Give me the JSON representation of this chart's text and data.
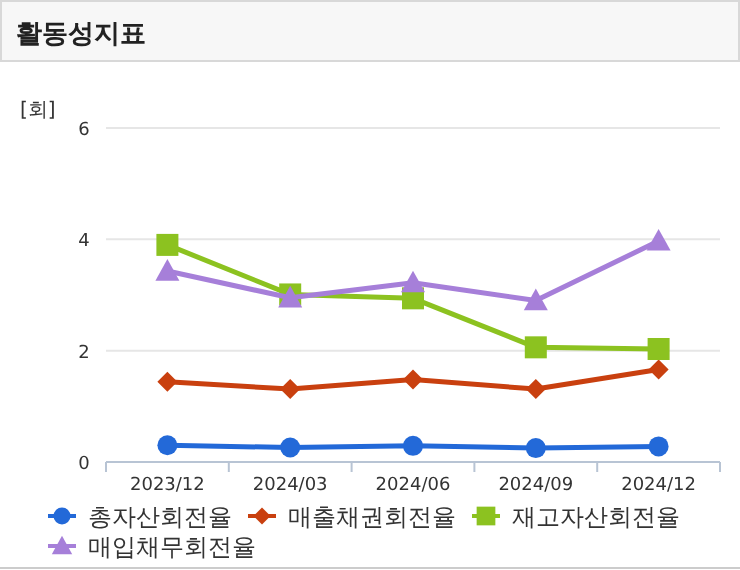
{
  "chart_data": {
    "type": "line",
    "title": "활동성지표",
    "ylabel": "[회]",
    "categories": [
      "2023/12",
      "2024/03",
      "2024/06",
      "2024/09",
      "2024/12"
    ],
    "ylim": [
      0,
      6
    ],
    "yticks": [
      0,
      2,
      4,
      6
    ],
    "grid": "y",
    "legend": "bottom",
    "line_style": "solid",
    "series": [
      {
        "name": "총자산회전율",
        "color": "#2369d8",
        "marker": "circle",
        "values": [
          0.3,
          0.26,
          0.29,
          0.25,
          0.28
        ]
      },
      {
        "name": "매출채권회전율",
        "color": "#c9400f",
        "marker": "diamond",
        "values": [
          1.44,
          1.31,
          1.48,
          1.31,
          1.66
        ]
      },
      {
        "name": "재고자산회전율",
        "color": "#8cc220",
        "marker": "square",
        "values": [
          3.9,
          3.01,
          2.94,
          2.06,
          2.03
        ]
      },
      {
        "name": "매입채무회전율",
        "color": "#a67fd9",
        "marker": "triangle",
        "values": [
          3.43,
          2.95,
          3.22,
          2.9,
          3.97
        ]
      }
    ]
  }
}
